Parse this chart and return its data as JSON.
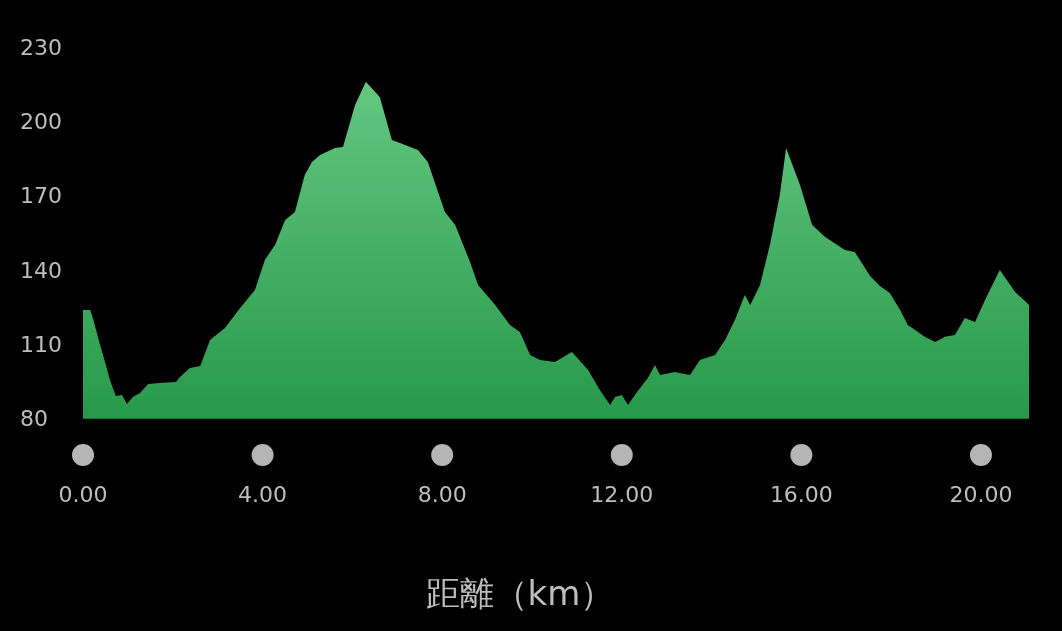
{
  "chart_data": {
    "type": "area",
    "xlabel": "距離（km）",
    "x": [
      0,
      0.16,
      0.22,
      0.38,
      0.51,
      0.6,
      0.73,
      0.87,
      0.98,
      1.11,
      1.27,
      1.45,
      1.71,
      2.07,
      2.16,
      2.38,
      2.61,
      2.83,
      3.16,
      3.5,
      3.83,
      4.05,
      4.28,
      4.5,
      4.72,
      4.94,
      5.1,
      5.28,
      5.61,
      5.79,
      6.06,
      6.3,
      6.61,
      6.88,
      7.06,
      7.46,
      7.68,
      8.06,
      8.29,
      8.62,
      8.8,
      9.18,
      9.51,
      9.73,
      9.96,
      10.18,
      10.51,
      10.89,
      11.25,
      11.51,
      11.74,
      11.85,
      12.0,
      12.14,
      12.29,
      12.58,
      12.74,
      12.85,
      13.18,
      13.52,
      13.74,
      14.08,
      14.3,
      14.52,
      14.74,
      14.86,
      15.08,
      15.3,
      15.52,
      15.66,
      15.97,
      16.24,
      16.53,
      16.97,
      17.19,
      17.53,
      17.75,
      17.97,
      18.2,
      18.37,
      18.75,
      18.98,
      19.2,
      19.42,
      19.64,
      19.87,
      20.09,
      20.42,
      20.76,
      20.91,
      21.07
    ],
    "series": [
      {
        "color": "#2fb457",
        "values": [
          123.7,
          123.7,
          120.4,
          109.5,
          101.4,
          95.4,
          88.9,
          89.3,
          85.7,
          88.5,
          90.1,
          93.7,
          94.2,
          94.6,
          96.6,
          100.2,
          101,
          111.5,
          116.4,
          124.5,
          131.8,
          143.9,
          150,
          160,
          163.3,
          178.3,
          183.5,
          186.3,
          189.2,
          189.6,
          206.6,
          215.9,
          209.8,
          192.4,
          191.2,
          188.4,
          183.5,
          163.3,
          158,
          143.1,
          133.8,
          125.7,
          117.6,
          114.8,
          105.5,
          103.5,
          102.6,
          106.7,
          99.4,
          91.3,
          85.3,
          88.5,
          89.3,
          85.3,
          89.3,
          96.2,
          101.4,
          97.4,
          98.6,
          97.4,
          103.5,
          105.5,
          111.5,
          119.6,
          129.7,
          125.7,
          133.8,
          150,
          170.2,
          189.2,
          174.2,
          158,
          153.2,
          147.9,
          147.1,
          137.4,
          133.4,
          130.5,
          123.7,
          117.6,
          112.8,
          110.7,
          112.8,
          113.6,
          120.4,
          118.8,
          127.7,
          139.8,
          130.9,
          128.5,
          125.7
        ]
      }
    ],
    "xlim": [
      0,
      21.07
    ],
    "ylim": [
      80,
      230
    ],
    "xticks": [
      {
        "value": 0,
        "label": "0.00"
      },
      {
        "value": 4,
        "label": "4.00"
      },
      {
        "value": 8,
        "label": "8.00"
      },
      {
        "value": 12,
        "label": "12.00"
      },
      {
        "value": 16,
        "label": "16.00"
      },
      {
        "value": 20,
        "label": "20.00"
      }
    ],
    "yticks": [
      80,
      110,
      140,
      170,
      200,
      230
    ],
    "grid": false
  }
}
